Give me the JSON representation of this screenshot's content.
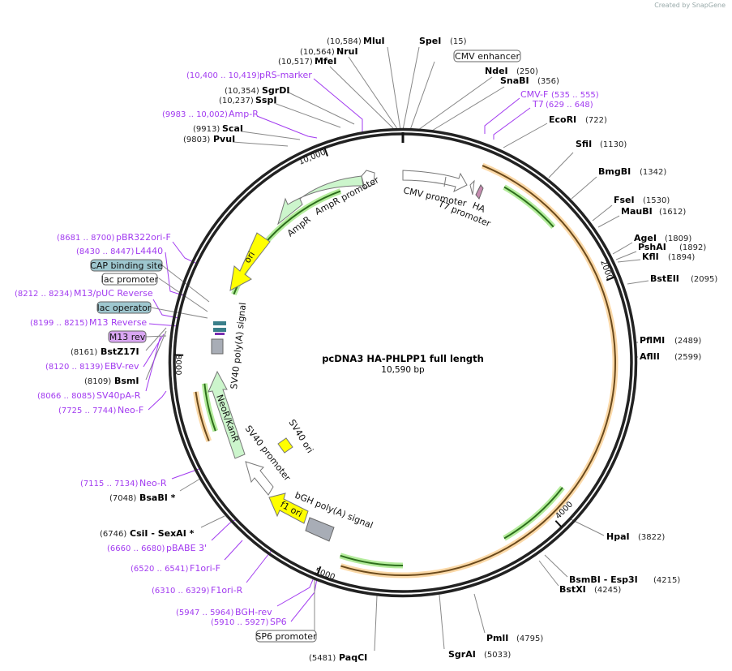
{
  "watermark": "Created by SnapGene",
  "title": "pcDNA3 HA-PHLPP1 full length",
  "length": "10,590 bp",
  "enzymes": [
    {
      "name": "MluI",
      "pos": "(10,584)"
    },
    {
      "name": "SpeI",
      "pos": "(15)"
    },
    {
      "name": "NruI",
      "pos": "(10,564)"
    },
    {
      "name": "MfeI",
      "pos": "(10,517)"
    },
    {
      "name": "NdeI",
      "pos": "(250)"
    },
    {
      "name": "SnaBI",
      "pos": "(356)"
    },
    {
      "name": "SgrDI",
      "pos": "(10,354)"
    },
    {
      "name": "SspI",
      "pos": "(10,237)"
    },
    {
      "name": "EcoRI",
      "pos": "(722)"
    },
    {
      "name": "ScaI",
      "pos": "(9913)"
    },
    {
      "name": "PvuI",
      "pos": "(9803)"
    },
    {
      "name": "SfiI",
      "pos": "(1130)"
    },
    {
      "name": "BmgBI",
      "pos": "(1342)"
    },
    {
      "name": "FseI",
      "pos": "(1530)"
    },
    {
      "name": "MauBI",
      "pos": "(1612)"
    },
    {
      "name": "AgeI",
      "pos": "(1809)"
    },
    {
      "name": "PshAI",
      "pos": "(1892)"
    },
    {
      "name": "KflI",
      "pos": "(1894)"
    },
    {
      "name": "BstEII",
      "pos": "(2095)"
    },
    {
      "name": "PflMI",
      "pos": "(2489)"
    },
    {
      "name": "AflII",
      "pos": "(2599)"
    },
    {
      "name": "HpaI",
      "pos": "(3822)"
    },
    {
      "name": "BsmBI  - Esp3I",
      "pos": "(4215)"
    },
    {
      "name": "BstXI",
      "pos": "(4245)"
    },
    {
      "name": "PmlI",
      "pos": "(4795)"
    },
    {
      "name": "SgrAI",
      "pos": "(5033)"
    },
    {
      "name": "PaqCI",
      "pos": "(5481)"
    },
    {
      "name": "BsaBI *",
      "pos": "(7048)"
    },
    {
      "name": "CsiI  - SexAI *",
      "pos": "(6746)"
    },
    {
      "name": "BstZ17I",
      "pos": "(8161)"
    },
    {
      "name": "BsmI",
      "pos": "(8109)"
    }
  ],
  "primers": [
    {
      "name": "pRS-marker",
      "range": "(10,400 .. 10,419)"
    },
    {
      "name": "CMV-F",
      "range": "(535 .. 555)"
    },
    {
      "name": "T7",
      "range": "(629 .. 648)"
    },
    {
      "name": "Amp-R",
      "range": "(9983 .. 10,002)"
    },
    {
      "name": "pBR322ori-F",
      "range": "(8681 .. 8700)"
    },
    {
      "name": "L4440",
      "range": "(8430 .. 8447)"
    },
    {
      "name": "M13/pUC Reverse",
      "range": "(8212 .. 8234)"
    },
    {
      "name": "M13 Reverse",
      "range": "(8199 .. 8215)"
    },
    {
      "name": "EBV-rev",
      "range": "(8120 .. 8139)"
    },
    {
      "name": "SV40pA-R",
      "range": "(8066 .. 8085)"
    },
    {
      "name": "Neo-F",
      "range": "(7725 .. 7744)"
    },
    {
      "name": "Neo-R",
      "range": "(7115 .. 7134)"
    },
    {
      "name": "pBABE 3'",
      "range": "(6660 .. 6680)"
    },
    {
      "name": "F1ori-F",
      "range": "(6520 .. 6541)"
    },
    {
      "name": "F1ori-R",
      "range": "(6310 .. 6329)"
    },
    {
      "name": "BGH-rev",
      "range": "(5947 .. 5964)"
    },
    {
      "name": "SP6",
      "range": "(5910 .. 5927)"
    }
  ],
  "boxed_features": [
    {
      "name": "CMV enhancer",
      "color": "#ffffff"
    },
    {
      "name": "CAP binding site",
      "color": "#9ec7cf"
    },
    {
      "name": "lac promoter",
      "color": "#ffffff"
    },
    {
      "name": "lac operator",
      "color": "#9ec7cf"
    },
    {
      "name": "M13 rev",
      "color": "#d9a6f2"
    },
    {
      "name": "SP6 promoter",
      "color": "#ffffff"
    }
  ],
  "features": {
    "cmv_promoter": "CMV promoter",
    "t7_promoter": "T7 promoter",
    "ha": "HA",
    "ampr_promoter": "AmpR promoter",
    "ampr": "AmpR",
    "ori": "ori",
    "sv40_polya": "SV40 poly(A) signal",
    "neor": "NeoR/KanR",
    "sv40_ori": "SV40 ori",
    "sv40_promoter": "SV40 promoter",
    "f1_ori": "f1 ori",
    "bgh_polya": "bGH poly(A) signal"
  },
  "ticks": [
    "2000",
    "4000",
    "5000",
    "8000",
    "10,000"
  ],
  "colors": {
    "primer": "#a23bf0",
    "orf": "#f0a030",
    "orf_halo": "#fbd9a8",
    "green": "#2d6e1c",
    "green_halo": "#b4ec9c",
    "yellow": "#ffff00"
  }
}
